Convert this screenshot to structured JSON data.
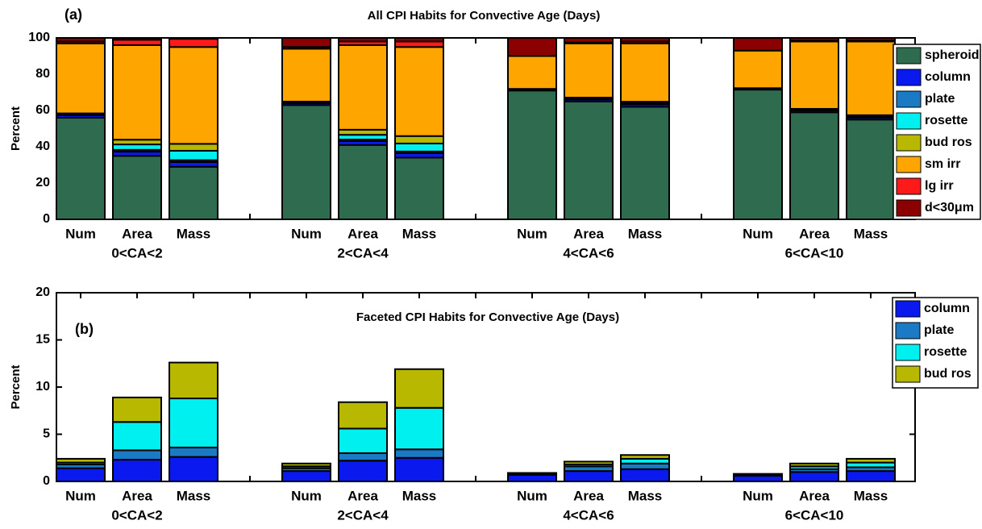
{
  "chart_data": [
    {
      "type": "bar",
      "stacked": true,
      "panel_label": "(a)",
      "title": "All CPI Habits for Convective Age (Days)",
      "y_label": "Percent",
      "categories": [
        "Num",
        "Area",
        "Mass",
        null,
        "Num",
        "Area",
        "Mass",
        null,
        "Num",
        "Area",
        "Mass",
        null,
        "Num",
        "Area",
        "Mass"
      ],
      "group_labels": [
        "0<CA<2",
        "2<CA<4",
        "4<CA<6",
        "6<CA<10"
      ],
      "ylim": [
        0,
        100
      ],
      "yticks": [
        0,
        20,
        40,
        60,
        80,
        100
      ],
      "legend": "right",
      "series": [
        {
          "name": "spheroid",
          "color": "#2e6b4f",
          "values": [
            56,
            35,
            29,
            null,
            63,
            41,
            34,
            null,
            71,
            65,
            62,
            null,
            71.5,
            59,
            55
          ]
        },
        {
          "name": "column",
          "color": "#0a1aef",
          "values": [
            1.4,
            2.3,
            2.6,
            null,
            1.1,
            2.2,
            2.5,
            null,
            0.7,
            1.1,
            1.3,
            null,
            0.6,
            1.0,
            1.1
          ]
        },
        {
          "name": "plate",
          "color": "#1a7ac4",
          "values": [
            0.4,
            1.0,
            1.0,
            null,
            0.3,
            0.8,
            0.9,
            null,
            0.1,
            0.5,
            0.6,
            null,
            0.1,
            0.3,
            0.4
          ]
        },
        {
          "name": "rosette",
          "color": "#00f0f0",
          "values": [
            0.2,
            3.0,
            5.2,
            null,
            0.2,
            2.6,
            4.4,
            null,
            0.05,
            0.2,
            0.5,
            null,
            0.05,
            0.3,
            0.5
          ]
        },
        {
          "name": "bud ros",
          "color": "#b8b800",
          "values": [
            0.4,
            2.6,
            3.8,
            null,
            0.3,
            2.8,
            4.1,
            null,
            0.05,
            0.3,
            0.4,
            null,
            0.05,
            0.3,
            0.4
          ]
        },
        {
          "name": "sm irr",
          "color": "#ffa500",
          "values": [
            38.6,
            52.1,
            53.4,
            null,
            29.1,
            46.6,
            49.1,
            null,
            18.1,
            29.9,
            32.2,
            null,
            20.7,
            37.1,
            40.6
          ]
        },
        {
          "name": "lg irr",
          "color": "#ff1a1a",
          "values": [
            1,
            3,
            4.5,
            null,
            1,
            2,
            3,
            null,
            0,
            0.5,
            1,
            null,
            0,
            0.5,
            0.5
          ]
        },
        {
          "name": "d<30μm",
          "color": "#8b0000",
          "values": [
            2,
            1,
            0.5,
            null,
            5,
            2,
            2,
            null,
            10,
            2.5,
            2,
            null,
            7,
            1.5,
            1.5
          ]
        }
      ]
    },
    {
      "type": "bar",
      "stacked": true,
      "panel_label": "(b)",
      "title": "Faceted CPI Habits for Convective Age (Days)",
      "y_label": "Percent",
      "categories": [
        "Num",
        "Area",
        "Mass",
        null,
        "Num",
        "Area",
        "Mass",
        null,
        "Num",
        "Area",
        "Mass",
        null,
        "Num",
        "Area",
        "Mass"
      ],
      "group_labels": [
        "0<CA<2",
        "2<CA<4",
        "4<CA<6",
        "6<CA<10"
      ],
      "ylim": [
        0,
        20
      ],
      "yticks": [
        0,
        5,
        10,
        15,
        20
      ],
      "legend": "upper right",
      "series": [
        {
          "name": "column",
          "color": "#0a1aef",
          "values": [
            1.4,
            2.3,
            2.6,
            null,
            1.1,
            2.2,
            2.5,
            null,
            0.7,
            1.1,
            1.3,
            null,
            0.6,
            1.0,
            1.1
          ]
        },
        {
          "name": "plate",
          "color": "#1a7ac4",
          "values": [
            0.4,
            1.0,
            1.0,
            null,
            0.3,
            0.8,
            0.9,
            null,
            0.1,
            0.5,
            0.6,
            null,
            0.1,
            0.3,
            0.4
          ]
        },
        {
          "name": "rosette",
          "color": "#00f0f0",
          "values": [
            0.2,
            3.0,
            5.2,
            null,
            0.2,
            2.6,
            4.4,
            null,
            0.05,
            0.2,
            0.5,
            null,
            0.05,
            0.3,
            0.5
          ]
        },
        {
          "name": "bud ros",
          "color": "#b8b800",
          "values": [
            0.4,
            2.6,
            3.8,
            null,
            0.3,
            2.8,
            4.1,
            null,
            0.05,
            0.3,
            0.4,
            null,
            0.05,
            0.3,
            0.4
          ]
        }
      ]
    }
  ]
}
